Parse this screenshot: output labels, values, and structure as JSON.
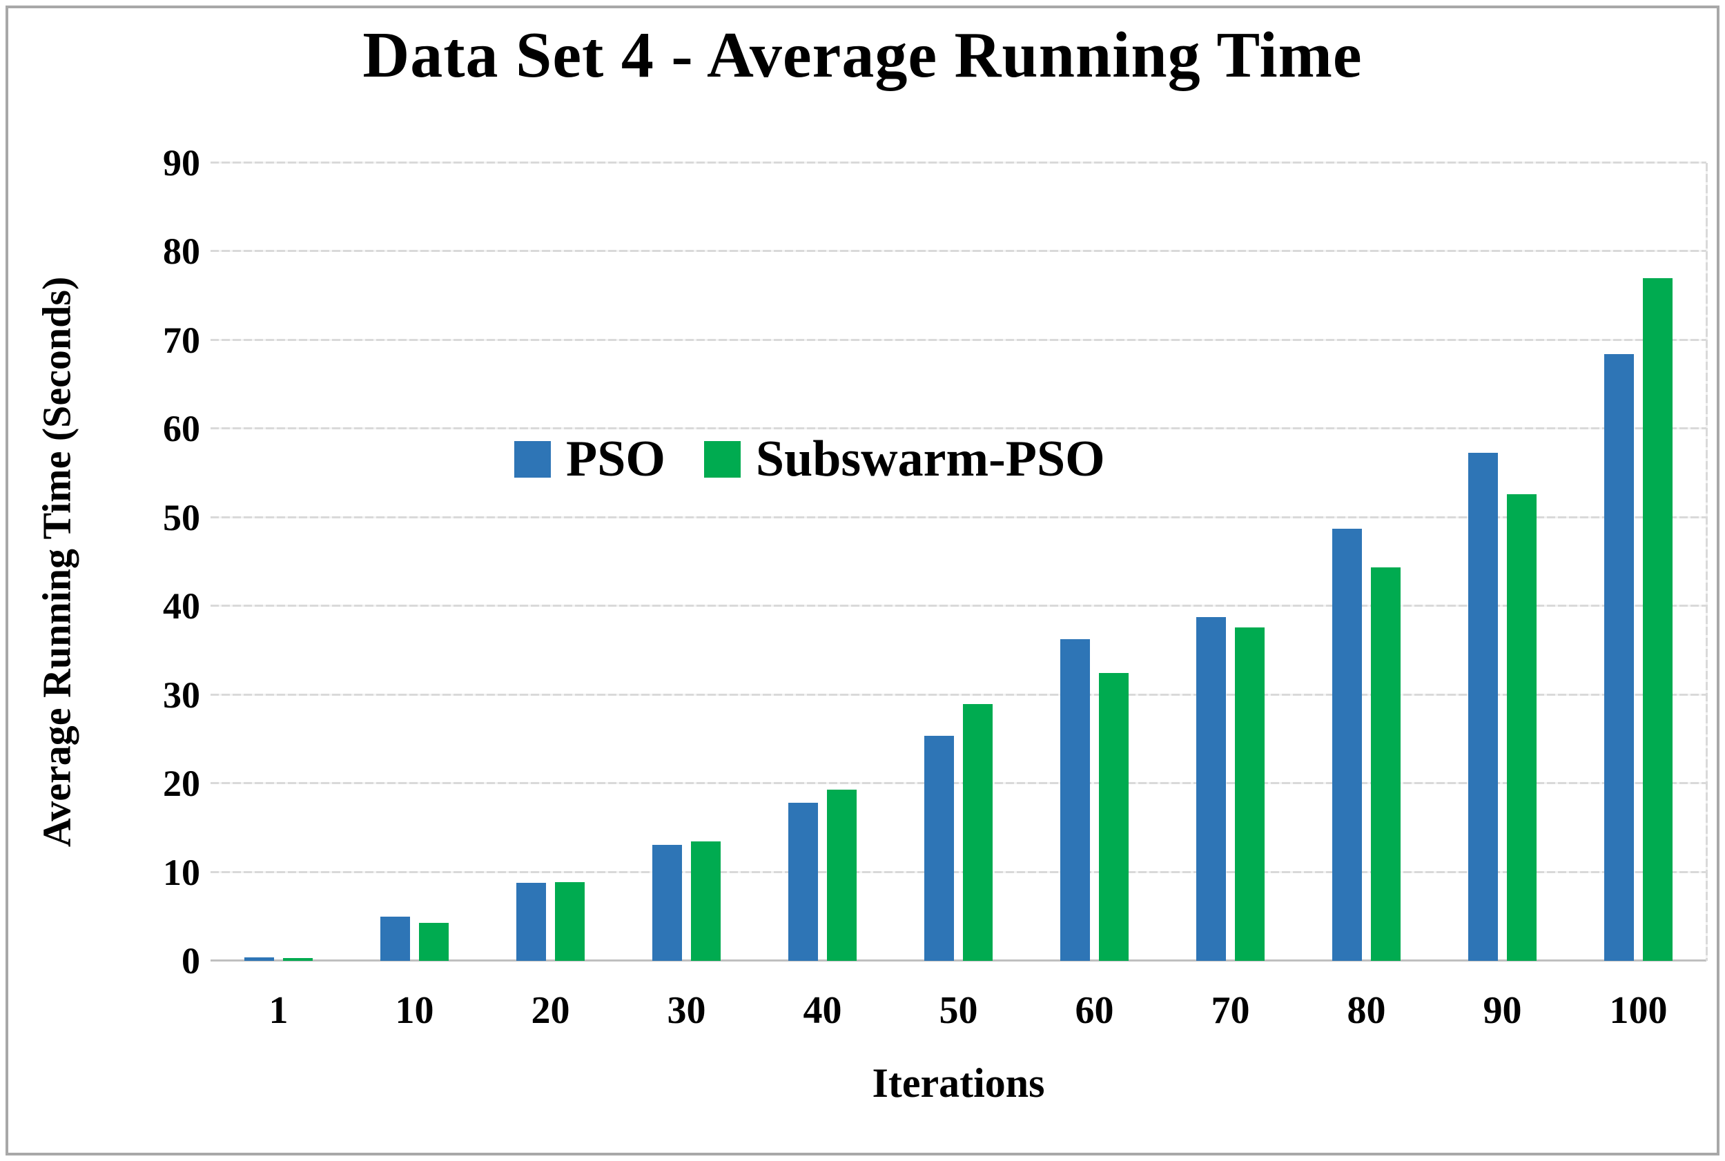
{
  "chart_data": {
    "type": "bar",
    "title": "Data Set 4 - Average Running Time",
    "xlabel": "Iterations",
    "ylabel": "Average Running Time (Seconds)",
    "categories": [
      "1",
      "10",
      "20",
      "30",
      "40",
      "50",
      "60",
      "70",
      "80",
      "90",
      "100"
    ],
    "series": [
      {
        "name": "PSO",
        "color": "#2E75B6",
        "values": [
          0.4,
          5.0,
          8.8,
          13.1,
          17.8,
          25.4,
          36.3,
          38.8,
          48.7,
          57.3,
          68.4
        ]
      },
      {
        "name": "Subswarm-PSO",
        "color": "#00AB50",
        "values": [
          0.3,
          4.3,
          8.9,
          13.5,
          19.3,
          29.0,
          32.5,
          37.6,
          44.4,
          52.6,
          77.0
        ]
      }
    ],
    "ylim": [
      0,
      90
    ],
    "yticks": [
      0,
      10,
      20,
      30,
      40,
      50,
      60,
      70,
      80,
      90
    ],
    "grid": true,
    "legend_position": "inside-upper-left"
  },
  "styles": {
    "grid_color": "#d9d9d9",
    "baseline_color": "#bfbfbf",
    "frame_border_color": "#a8a8a8",
    "text_color": "#000000",
    "background_color": "#ffffff"
  }
}
